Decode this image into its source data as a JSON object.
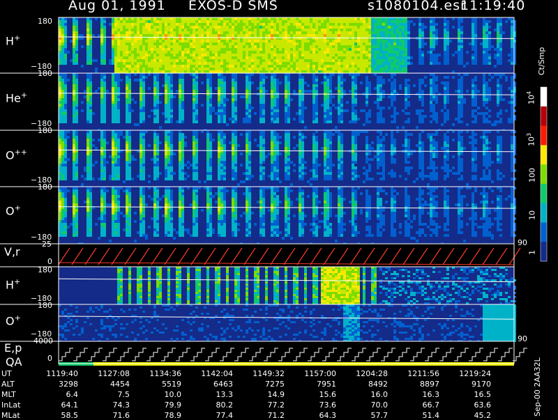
{
  "header": {
    "date": "Aug 01, 1991",
    "instrument": "EXOS-D SMS",
    "file": "s1080104.esr",
    "time": "11:19:40"
  },
  "panels": [
    {
      "label": "H",
      "sup": "+",
      "top": "180",
      "bottom": "−180",
      "kind": "spec"
    },
    {
      "label": "He",
      "sup": "+",
      "top": "180",
      "bottom": "−180",
      "kind": "spec"
    },
    {
      "label": "O",
      "sup": "++",
      "top": "180",
      "bottom": "−180",
      "kind": "spec"
    },
    {
      "label": "O",
      "sup": "+",
      "top": "180",
      "bottom": "−180",
      "kind": "spec"
    },
    {
      "label": "V,r",
      "sup": "",
      "top": "25",
      "bottom": "0",
      "right": "90",
      "kind": "vr"
    },
    {
      "label": "H",
      "sup": "+",
      "top": "180",
      "bottom": "−180",
      "kind": "spec2"
    },
    {
      "label": "O",
      "sup": "+",
      "top": "180",
      "bottom": "−180",
      "kind": "spec2"
    },
    {
      "label": "E,p",
      "sup": "",
      "label2": "QA",
      "top": "4000",
      "bottom": "0",
      "right": "90",
      "kind": "ep"
    }
  ],
  "colorbar": {
    "unit": "Ct/Smp",
    "ticks": [
      {
        "label": "10",
        "sup": "4"
      },
      {
        "label": "10",
        "sup": "3"
      },
      {
        "label": "100",
        "sup": ""
      },
      {
        "label": "10",
        "sup": ""
      },
      {
        "label": "1",
        "sup": ""
      }
    ],
    "colors": [
      "#ffffff",
      "#b5000a",
      "#ff1a00",
      "#ffe800",
      "#7ddc00",
      "#0fc96a",
      "#00b2c8",
      "#0060d0",
      "#142b8a"
    ]
  },
  "table": {
    "rows": [
      {
        "name": "UT",
        "values": [
          "1119:40",
          "1127:08",
          "1134:36",
          "1142:04",
          "1149:32",
          "1157:00",
          "1204:28",
          "1211:56",
          "1219:24"
        ]
      },
      {
        "name": "ALT",
        "values": [
          "3298",
          "4454",
          "5519",
          "6463",
          "7275",
          "7951",
          "8492",
          "8897",
          "9170"
        ]
      },
      {
        "name": "MLT",
        "values": [
          "6.4",
          "7.5",
          "10.0",
          "13.3",
          "14.9",
          "15.6",
          "16.0",
          "16.3",
          "16.5"
        ]
      },
      {
        "name": "InLat",
        "values": [
          "64.1",
          "74.3",
          "79.9",
          "80.2",
          "77.2",
          "73.6",
          "70.0",
          "66.7",
          "63.6"
        ]
      },
      {
        "name": "MLat",
        "values": [
          "58.5",
          "71.6",
          "78.9",
          "77.4",
          "71.2",
          "64.3",
          "57.7",
          "51.4",
          "45.2"
        ]
      }
    ]
  },
  "footer": {
    "code": "Sep-00 2AA32L"
  },
  "chart_data": {
    "type": "heatmap",
    "title": "Aug 01, 1991   EXOS-D SMS",
    "colorbar_label": "Ct/Smp",
    "colorbar_ticks": [
      "10^4",
      "10^3",
      "100",
      "10",
      "1"
    ],
    "x_ticks": [
      "1119:40",
      "1127:08",
      "1134:36",
      "1142:04",
      "1149:32",
      "1157:00",
      "1204:28",
      "1211:56",
      "1219:24"
    ],
    "panel_ranges": [
      {
        "name": "H+",
        "ylim": [
          -180,
          180
        ]
      },
      {
        "name": "He+",
        "ylim": [
          -180,
          180
        ]
      },
      {
        "name": "O++",
        "ylim": [
          -180,
          180
        ]
      },
      {
        "name": "O+",
        "ylim": [
          -180,
          180
        ]
      },
      {
        "name": "V,r",
        "ylim": [
          0,
          25
        ],
        "right_tick": "90"
      },
      {
        "name": "H+",
        "ylim": [
          -180,
          180
        ]
      },
      {
        "name": "O+",
        "ylim": [
          -180,
          180
        ]
      },
      {
        "name": "E,p / QA",
        "ylim": [
          0,
          4000
        ],
        "right_tick": "90"
      }
    ],
    "grid": false
  }
}
